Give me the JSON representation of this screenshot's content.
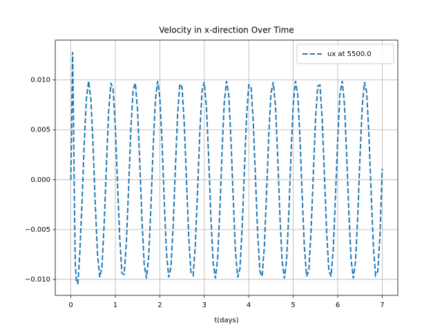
{
  "chart_data": {
    "type": "line",
    "title": "Velocity in x-direction Over Time",
    "x_label": "t(days)",
    "x": [
      0,
      0.02,
      0.04,
      0.06,
      0.08,
      0.1,
      0.13,
      0.16,
      0.2,
      0.25,
      0.3,
      0.35,
      0.4,
      0.45,
      0.5,
      0.55,
      0.6,
      0.65,
      0.7,
      0.75,
      0.8,
      0.85,
      0.9,
      0.95,
      1.0,
      1.05,
      1.1,
      1.15,
      1.2,
      1.25,
      1.3,
      1.35,
      1.4,
      1.45,
      1.5,
      1.55,
      1.6,
      1.65,
      1.7,
      1.75,
      1.8,
      1.85,
      1.9,
      1.95,
      2.0,
      2.05,
      2.1,
      2.15,
      2.2,
      2.25,
      2.3,
      2.35,
      2.4,
      2.45,
      2.5,
      2.55,
      2.6,
      2.65,
      2.7,
      2.75,
      2.8,
      2.85,
      2.9,
      2.95,
      3.0,
      3.05,
      3.1,
      3.15,
      3.2,
      3.25,
      3.3,
      3.35,
      3.4,
      3.45,
      3.5,
      3.55,
      3.6,
      3.65,
      3.7,
      3.75,
      3.8,
      3.85,
      3.9,
      3.95,
      4.0,
      4.05,
      4.1,
      4.15,
      4.2,
      4.25,
      4.3,
      4.35,
      4.4,
      4.45,
      4.5,
      4.55,
      4.6,
      4.65,
      4.7,
      4.75,
      4.8,
      4.85,
      4.9,
      4.95,
      5.0,
      5.05,
      5.1,
      5.15,
      5.2,
      5.25,
      5.3,
      5.35,
      5.4,
      5.45,
      5.5,
      5.55,
      5.6,
      5.65,
      5.7,
      5.75,
      5.8,
      5.85,
      5.9,
      5.95,
      6.0,
      6.05,
      6.1,
      6.15,
      6.2,
      6.25,
      6.3,
      6.35,
      6.4,
      6.45,
      6.5,
      6.55,
      6.6,
      6.65,
      6.7,
      6.75,
      6.8,
      6.85,
      6.9,
      6.95,
      7.0
    ],
    "series": [
      {
        "name": "ux at 5500.0",
        "color": "#1f77b4",
        "dashed": true,
        "values": [
          0,
          0.006,
          0.0128,
          0.006,
          -0.002,
          -0.0085,
          -0.0104,
          -0.0104,
          -0.0075,
          -0.0025,
          0.0035,
          0.0081,
          0.0099,
          0.0081,
          0.0035,
          -0.0025,
          -0.0075,
          -0.0098,
          -0.0087,
          -0.0044,
          0.0014,
          0.0068,
          0.0097,
          0.0091,
          0.0053,
          -0.0004,
          -0.0059,
          -0.0094,
          -0.0095,
          -0.0062,
          -0.0007,
          0.0051,
          0.009,
          0.0097,
          0.007,
          0.0017,
          -0.0041,
          -0.0085,
          -0.0099,
          -0.0077,
          -0.0028,
          0.0032,
          0.0079,
          0.0099,
          0.0083,
          0.0038,
          -0.0021,
          -0.0073,
          -0.0098,
          -0.0088,
          -0.0047,
          0.0011,
          0.0065,
          0.0096,
          0.0093,
          0.0056,
          -0.0001,
          -0.0057,
          -0.0093,
          -0.0096,
          -0.0064,
          -0.001,
          0.0048,
          0.0089,
          0.0098,
          0.0072,
          0.002,
          -0.0039,
          -0.0084,
          -0.0099,
          -0.0079,
          -0.0031,
          0.0029,
          0.0078,
          0.0099,
          0.0085,
          0.004,
          -0.0018,
          -0.0071,
          -0.0098,
          -0.009,
          -0.005,
          0.0008,
          0.0063,
          0.0095,
          0.0094,
          0.0059,
          0.0003,
          -0.0054,
          -0.0092,
          -0.0097,
          -0.0067,
          -0.0013,
          0.0045,
          0.0087,
          0.0098,
          0.0074,
          0.0023,
          -0.0036,
          -0.0082,
          -0.0099,
          -0.0081,
          -0.0034,
          0.0026,
          0.0076,
          0.0099,
          0.0086,
          0.0043,
          -0.0015,
          -0.0068,
          -0.0097,
          -0.0091,
          -0.0052,
          0.0005,
          0.006,
          0.0094,
          0.0095,
          0.0061,
          0.0006,
          -0.0052,
          -0.0091,
          -0.0097,
          -0.0069,
          -0.0016,
          0.0042,
          0.0086,
          0.0099,
          0.0076,
          0.0026,
          -0.0033,
          -0.008,
          -0.0099,
          -0.0082,
          -0.0036,
          0.0023,
          0.0073,
          0.0098,
          0.0088,
          0.0046,
          -0.0012,
          -0.0066,
          -0.0096,
          -0.0092,
          -0.0055,
          0.0011
        ]
      }
    ],
    "xlim": [
      -0.35,
      7.35
    ],
    "xticks": [
      0,
      1,
      2,
      3,
      4,
      5,
      6,
      7
    ],
    "ylim": [
      -0.0116,
      0.014
    ],
    "yticks": [
      {
        "value": -0.01,
        "label": "−0.010"
      },
      {
        "value": -0.005,
        "label": "−0.005"
      },
      {
        "value": 0,
        "label": "0.000"
      },
      {
        "value": 0.005,
        "label": "0.005"
      },
      {
        "value": 0.01,
        "label": "0.010"
      }
    ],
    "grid": true,
    "legend": "upper right"
  }
}
